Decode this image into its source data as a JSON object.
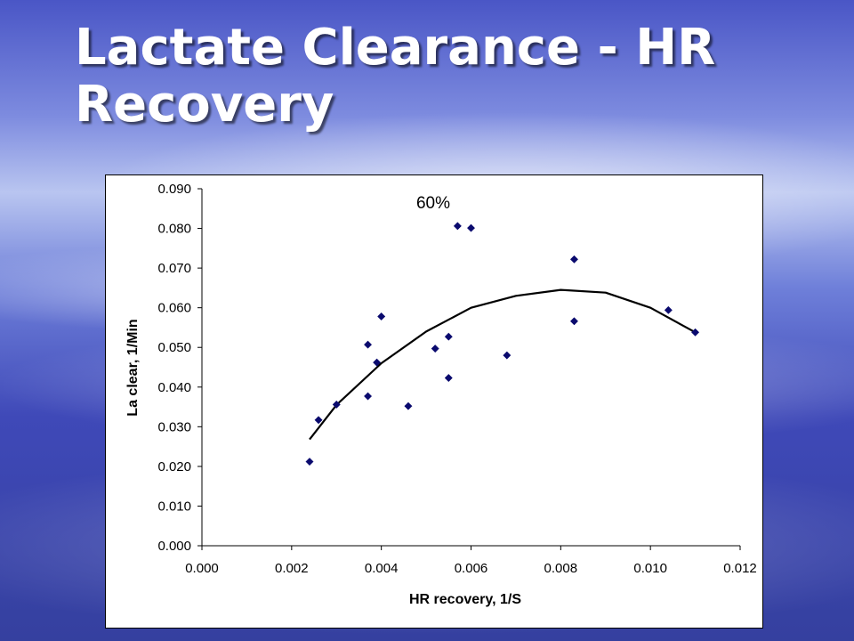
{
  "slide": {
    "title": "Lactate Clearance - HR Recovery"
  },
  "chart_data": {
    "type": "scatter",
    "annotation": "60%",
    "xlabel": "HR recovery, 1/S",
    "ylabel": "La clear, 1/Min",
    "xlim": [
      0.0,
      0.012
    ],
    "ylim": [
      0.0,
      0.09
    ],
    "x_ticks": [
      "0.000",
      "0.002",
      "0.004",
      "0.006",
      "0.008",
      "0.010",
      "0.012"
    ],
    "y_ticks": [
      "0.000",
      "0.010",
      "0.020",
      "0.030",
      "0.040",
      "0.050",
      "0.060",
      "0.070",
      "0.080",
      "0.090"
    ],
    "grid": false,
    "legend": "none",
    "marker_color": "#0a0a6e",
    "trendline_color": "#000000",
    "points": [
      {
        "x": 0.0024,
        "y": 0.0212
      },
      {
        "x": 0.0026,
        "y": 0.0317
      },
      {
        "x": 0.003,
        "y": 0.0356
      },
      {
        "x": 0.0037,
        "y": 0.0507
      },
      {
        "x": 0.0037,
        "y": 0.0377
      },
      {
        "x": 0.0039,
        "y": 0.0462
      },
      {
        "x": 0.004,
        "y": 0.0578
      },
      {
        "x": 0.0046,
        "y": 0.0352
      },
      {
        "x": 0.0052,
        "y": 0.0497
      },
      {
        "x": 0.0055,
        "y": 0.0527
      },
      {
        "x": 0.0055,
        "y": 0.0423
      },
      {
        "x": 0.0057,
        "y": 0.0806
      },
      {
        "x": 0.006,
        "y": 0.0801
      },
      {
        "x": 0.0068,
        "y": 0.048
      },
      {
        "x": 0.0083,
        "y": 0.0722
      },
      {
        "x": 0.0083,
        "y": 0.0566
      },
      {
        "x": 0.0104,
        "y": 0.0594
      },
      {
        "x": 0.011,
        "y": 0.0538
      }
    ],
    "trendline": {
      "type": "quadratic",
      "x": [
        0.0024,
        0.003,
        0.004,
        0.005,
        0.006,
        0.007,
        0.008,
        0.009,
        0.01,
        0.011
      ],
      "y": [
        0.0268,
        0.0355,
        0.046,
        0.054,
        0.06,
        0.063,
        0.0645,
        0.0638,
        0.06,
        0.0538
      ]
    }
  }
}
